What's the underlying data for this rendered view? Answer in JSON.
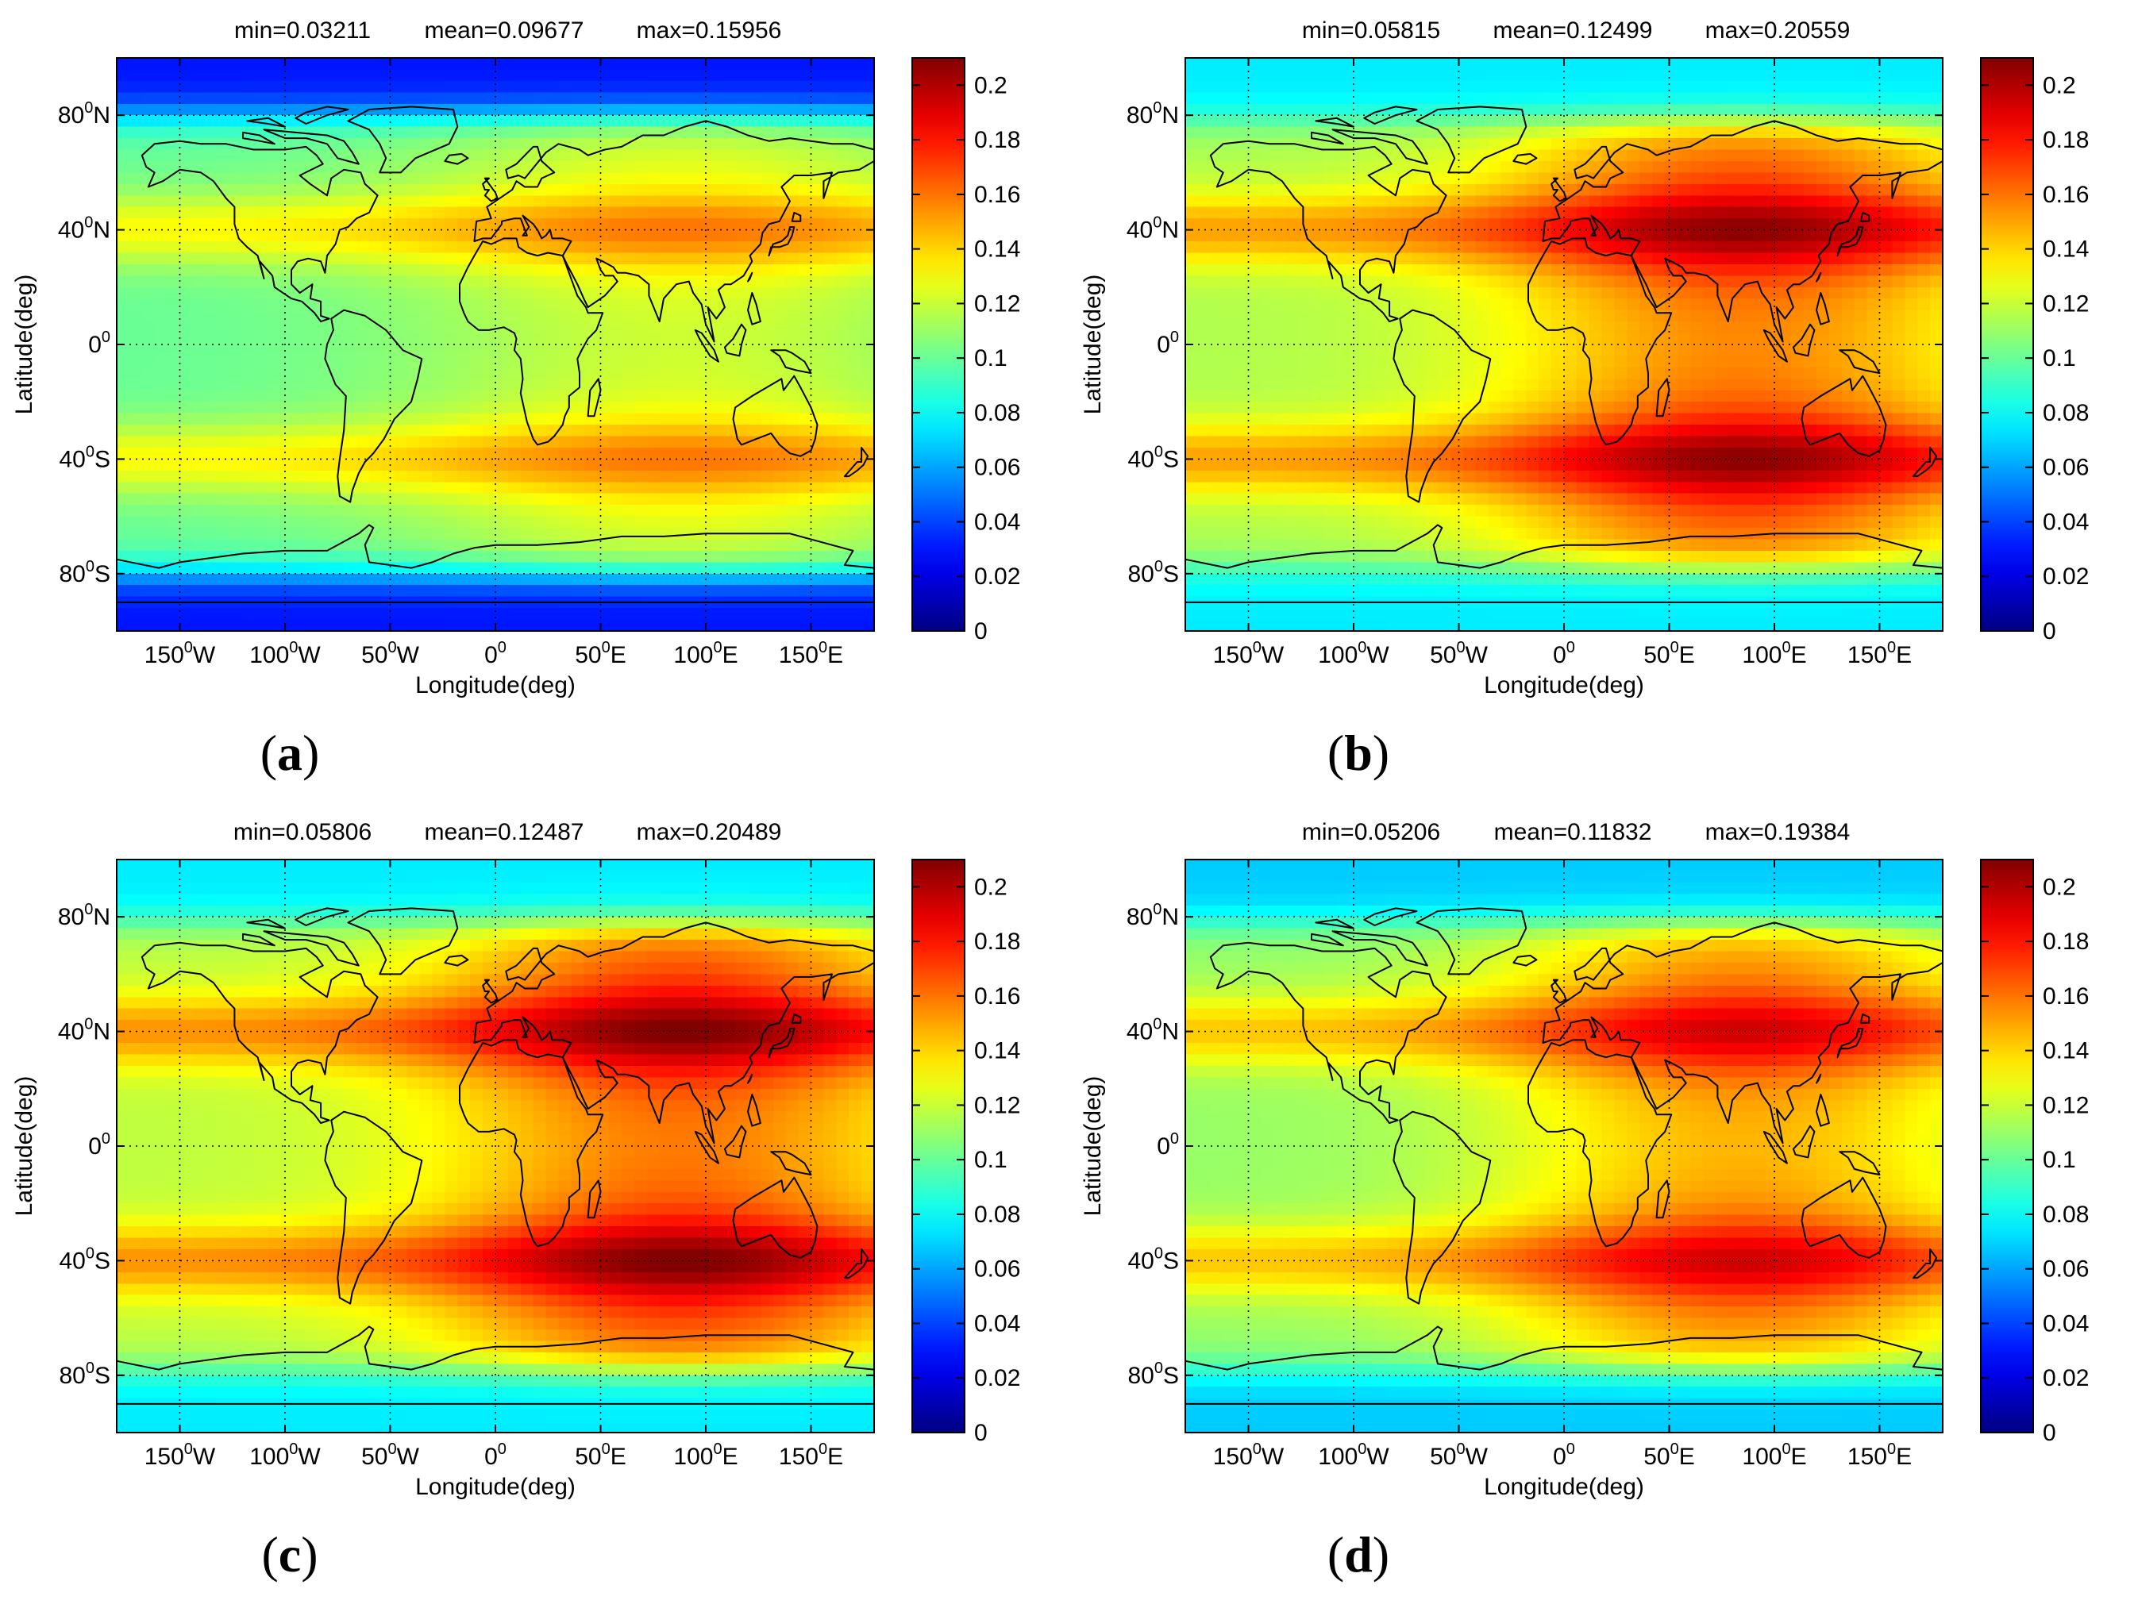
{
  "colorbar": {
    "ticks": [
      "0",
      "0.02",
      "0.04",
      "0.06",
      "0.08",
      "0.1",
      "0.12",
      "0.14",
      "0.16",
      "0.18",
      "0.2"
    ],
    "range": [
      0,
      0.21
    ],
    "colormap": "jet"
  },
  "axes": {
    "xlabel": "Longitude(deg)",
    "ylabel": "Latitude(deg)",
    "xticks": [
      {
        "base": "150",
        "sup": "0",
        "hemi": "W",
        "value": -150
      },
      {
        "base": "100",
        "sup": "0",
        "hemi": "W",
        "value": -100
      },
      {
        "base": "50",
        "sup": "0",
        "hemi": "W",
        "value": -50
      },
      {
        "base": "0",
        "sup": "0",
        "hemi": "",
        "value": 0
      },
      {
        "base": "50",
        "sup": "0",
        "hemi": "E",
        "value": 50
      },
      {
        "base": "100",
        "sup": "0",
        "hemi": "E",
        "value": 100
      },
      {
        "base": "150",
        "sup": "0",
        "hemi": "E",
        "value": 150
      }
    ],
    "yticks": [
      {
        "base": "80",
        "sup": "0",
        "hemi": "N",
        "value": 80
      },
      {
        "base": "40",
        "sup": "0",
        "hemi": "N",
        "value": 40
      },
      {
        "base": "0",
        "sup": "0",
        "hemi": "",
        "value": 0
      },
      {
        "base": "40",
        "sup": "0",
        "hemi": "S",
        "value": -40
      },
      {
        "base": "80",
        "sup": "0",
        "hemi": "S",
        "value": -80
      }
    ],
    "xlim": [
      -180,
      180
    ],
    "ylim": [
      -100,
      100
    ]
  },
  "chart_data": [
    {
      "type": "heatmap",
      "label": "a",
      "stats": {
        "min": "min=0.03211",
        "mean": "mean=0.09677",
        "max": "max=0.15956"
      },
      "field": {
        "base": 0.1,
        "pole": 0.03,
        "band": 0.03,
        "hot": 0.03,
        "hot_lon": 90,
        "hot_width": 95,
        "lobe_lat": 40,
        "pole_lat": 80
      }
    },
    {
      "type": "heatmap",
      "label": "b",
      "stats": {
        "min": "min=0.05815",
        "mean": "mean=0.12499",
        "max": "max=0.20559"
      },
      "field": {
        "base": 0.115,
        "pole": 0.075,
        "band": 0.035,
        "hot": 0.058,
        "hot_lon": 85,
        "hot_width": 80,
        "lobe_lat": 40,
        "pole_lat": 78
      }
    },
    {
      "type": "heatmap",
      "label": "c",
      "stats": {
        "min": "min=0.05806",
        "mean": "mean=0.12487",
        "max": "max=0.20489"
      },
      "field": {
        "base": 0.118,
        "pole": 0.075,
        "band": 0.035,
        "hot": 0.058,
        "hot_lon": 88,
        "hot_width": 80,
        "lobe_lat": 40,
        "pole_lat": 78
      }
    },
    {
      "type": "heatmap",
      "label": "d",
      "stats": {
        "min": "min=0.05206",
        "mean": "mean=0.11832",
        "max": "max=0.19384"
      },
      "field": {
        "base": 0.11,
        "pole": 0.068,
        "band": 0.032,
        "hot": 0.052,
        "hot_lon": 85,
        "hot_width": 80,
        "lobe_lat": 40,
        "pole_lat": 78
      }
    }
  ]
}
